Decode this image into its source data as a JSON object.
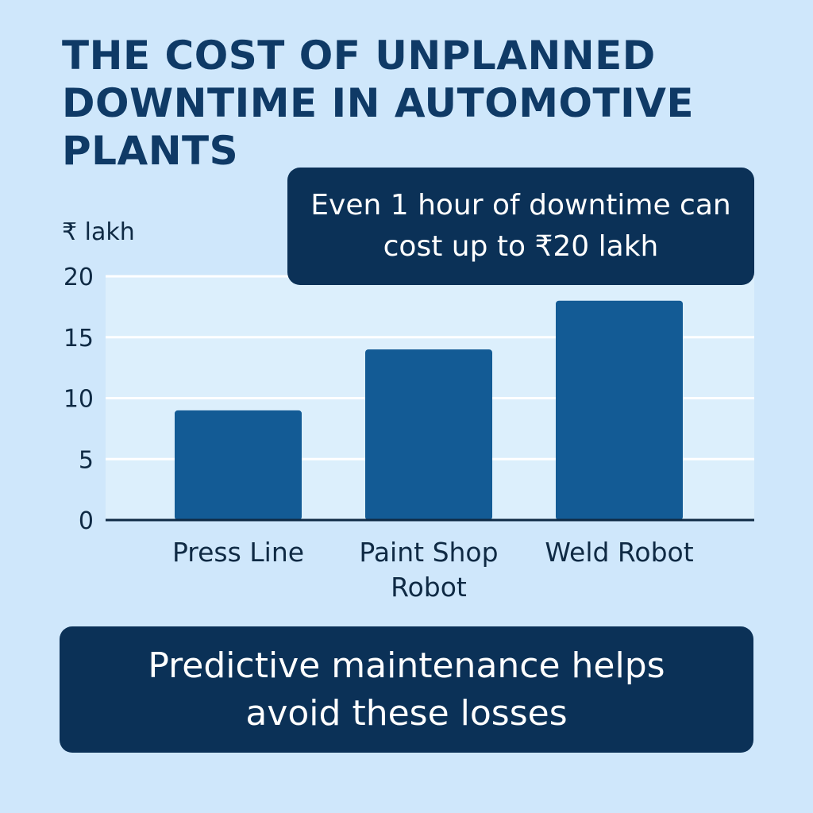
{
  "title": "THE COST OF UNPLANNED DOWNTIME IN AUTOMOTIVE PLANTS",
  "callout": "Even 1 hour of downtime can cost up to ₹20 lakh",
  "footer": "Predictive maintenance helps avoid these losses",
  "colors": {
    "background": "#cfe7fb",
    "plot_area": "#dceffc",
    "bar": "#135b95",
    "panel": "#0b3157",
    "title": "#0f3a66"
  },
  "chart_data": {
    "type": "bar",
    "ylabel": "₹ lakh",
    "ylim": [
      0,
      20
    ],
    "yticks": [
      0,
      5,
      10,
      15,
      20
    ],
    "categories": [
      [
        "Press Line"
      ],
      [
        "Paint Shop",
        "Robot"
      ],
      [
        "Weld Robot"
      ]
    ],
    "values": [
      9,
      14,
      18
    ],
    "grid": true,
    "legend": "none"
  }
}
